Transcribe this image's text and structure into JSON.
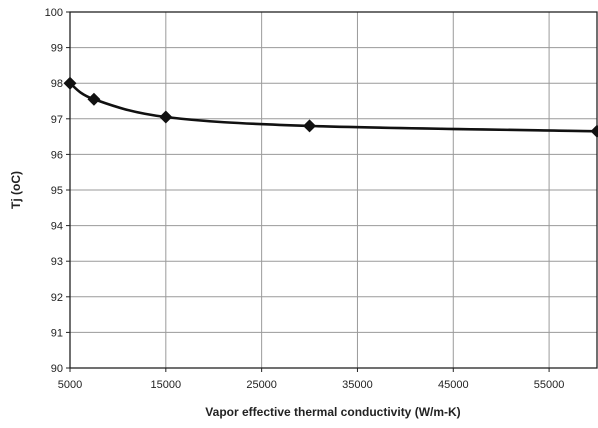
{
  "chart_data": {
    "type": "line",
    "xlabel": "Vapor effective thermal conductivity (W/m-K)",
    "ylabel": "Tj (oC)",
    "xlim": [
      5000,
      60000
    ],
    "ylim": [
      90,
      100
    ],
    "x_ticks": [
      "5000",
      "15000",
      "25000",
      "35000",
      "45000",
      "55000"
    ],
    "x_tick_values": [
      5000,
      15000,
      25000,
      35000,
      45000,
      55000
    ],
    "y_ticks": [
      "90",
      "91",
      "92",
      "93",
      "94",
      "95",
      "96",
      "97",
      "98",
      "99",
      "100"
    ],
    "y_tick_values": [
      90,
      91,
      92,
      93,
      94,
      95,
      96,
      97,
      98,
      99,
      100
    ],
    "grid": true,
    "series": [
      {
        "x": [
          5000,
          7500,
          15000,
          30000,
          60000
        ],
        "y": [
          98.0,
          97.55,
          97.05,
          96.8,
          96.65
        ],
        "line_color": "#111111",
        "marker": "diamond"
      }
    ]
  }
}
